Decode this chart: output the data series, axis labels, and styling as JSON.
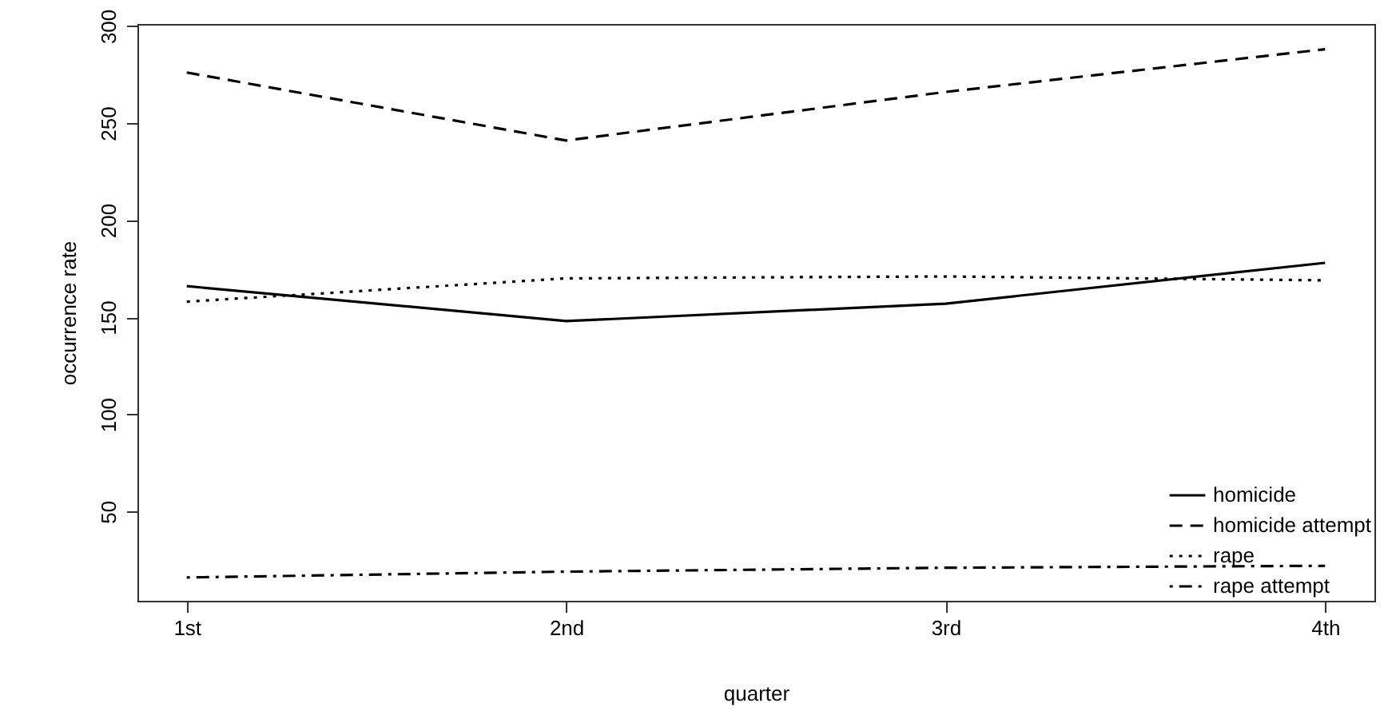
{
  "chart_data": {
    "type": "line",
    "xlabel": "quarter",
    "ylabel": "occurrence rate",
    "categories": [
      "1st",
      "2nd",
      "3rd",
      "4th"
    ],
    "series": [
      {
        "name": "homicide",
        "color": "#000000",
        "line_style": "solid",
        "values": [
          166,
          148,
          157,
          178
        ]
      },
      {
        "name": "homicide attempt",
        "color": "#000000",
        "line_style": "dashed",
        "values": [
          276,
          241,
          266,
          288
        ]
      },
      {
        "name": "rape",
        "color": "#000000",
        "line_style": "dotted",
        "values": [
          158,
          170,
          171,
          169
        ]
      },
      {
        "name": "rape attempt",
        "color": "#000000",
        "line_style": "dashdot",
        "values": [
          16,
          19,
          21,
          22
        ]
      }
    ],
    "ylim": [
      4,
      301
    ],
    "yticks": [
      50,
      100,
      150,
      200,
      250,
      300
    ],
    "grid": false,
    "legend": "bottom right",
    "marker": "none"
  }
}
